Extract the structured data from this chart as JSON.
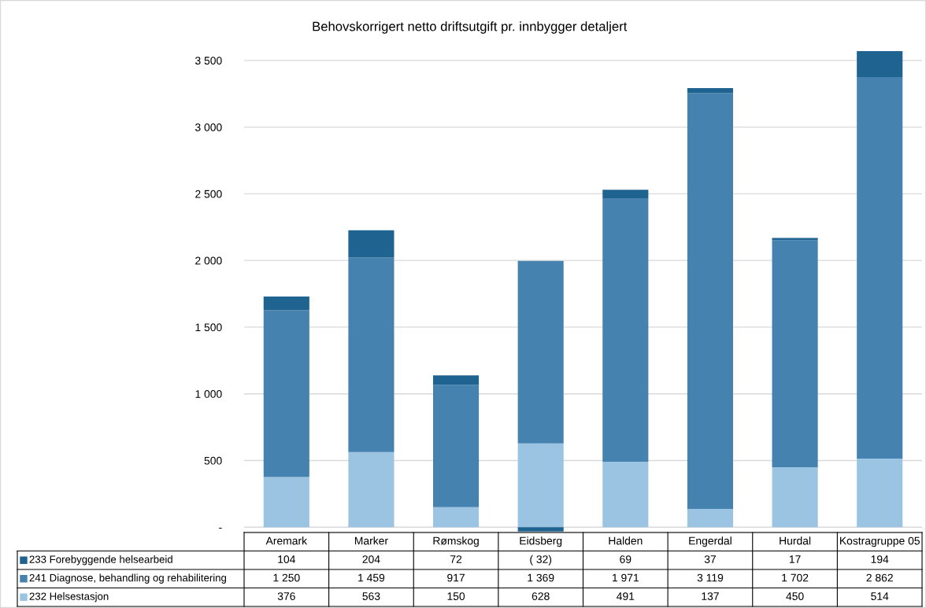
{
  "chart_data": {
    "type": "bar",
    "stacked": true,
    "title": "Behovskorrigert netto driftsutgift pr. innbygger detaljert",
    "categories": [
      "Aremark",
      "Marker",
      "Rømskog",
      "Eidsberg",
      "Halden",
      "Engerdal",
      "Hurdal",
      "Kostragruppe 05"
    ],
    "series": [
      {
        "name": "232 Helsestasjon",
        "color": "#9bc3e2",
        "values": [
          376,
          563,
          150,
          628,
          491,
          137,
          450,
          514
        ],
        "value_labels": [
          "376",
          "563",
          "150",
          "628",
          "491",
          "137",
          "450",
          "514"
        ]
      },
      {
        "name": "241 Diagnose, behandling og rehabilitering",
        "color": "#4682b0",
        "values": [
          1250,
          1459,
          917,
          1369,
          1971,
          3119,
          1702,
          2862
        ],
        "value_labels": [
          "1 250",
          "1 459",
          "917",
          "1 369",
          "1 971",
          "3 119",
          "1 702",
          "2 862"
        ]
      },
      {
        "name": "233 Forebyggende helsearbeid",
        "color": "#1f6391",
        "values": [
          104,
          204,
          72,
          -32,
          69,
          37,
          17,
          194
        ],
        "value_labels": [
          "104",
          "204",
          "72",
          "( 32)",
          "69",
          "37",
          "17",
          "194"
        ]
      }
    ],
    "ylim": [
      -40,
      3570
    ],
    "yticks": [
      {
        "value": 0,
        "label": "-"
      },
      500,
      {
        "value": 1000,
        "label": "1 000"
      },
      {
        "value": 1500,
        "label": "1 500"
      },
      {
        "value": 2000,
        "label": "2 000"
      },
      {
        "value": 2500,
        "label": "2 500"
      },
      {
        "value": 3000,
        "label": "3 000"
      },
      {
        "value": 3500,
        "label": "3 500"
      }
    ],
    "grid": "y",
    "legend": "bottom"
  }
}
